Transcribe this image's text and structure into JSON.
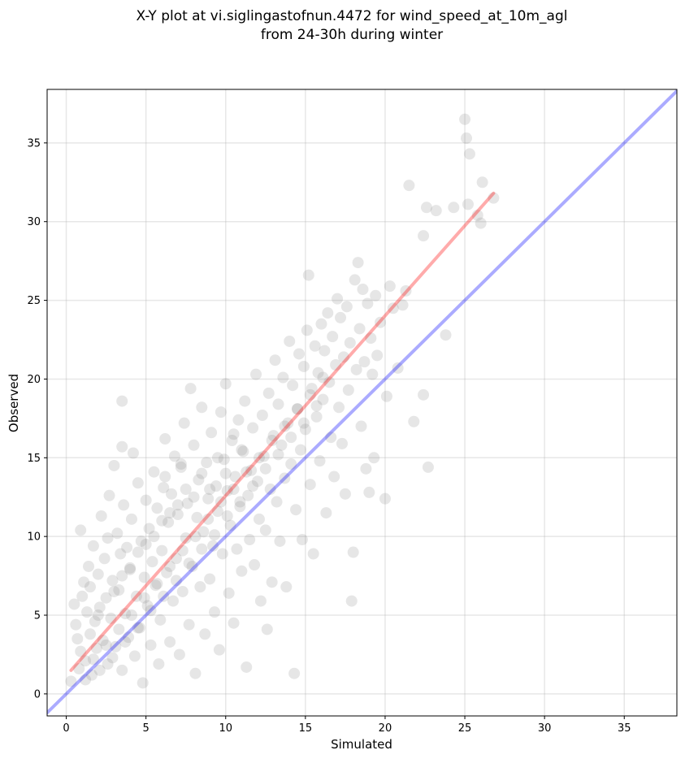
{
  "chart_data": {
    "type": "scatter",
    "title_lines": [
      "X-Y plot at vi.siglingastofnun.4472 for wind_speed_at_10m_agl",
      "from 24-30h during winter"
    ],
    "xlabel": "Simulated",
    "ylabel": "Observed",
    "xlim": [
      -1.2,
      38.3
    ],
    "ylim": [
      -1.4,
      38.4
    ],
    "xticks": [
      0,
      5,
      10,
      15,
      20,
      25,
      30,
      35
    ],
    "yticks": [
      0,
      5,
      10,
      15,
      20,
      25,
      30,
      35
    ],
    "grid": true,
    "point_color": "#808080",
    "series": [
      {
        "values": [
          [
            0.5,
            5.7
          ],
          [
            0.6,
            4.4
          ],
          [
            0.7,
            3.5
          ],
          [
            0.9,
            2.7
          ],
          [
            0.9,
            10.4
          ],
          [
            1.0,
            6.2
          ],
          [
            1.1,
            7.1
          ],
          [
            1.2,
            2.1
          ],
          [
            1.3,
            5.2
          ],
          [
            1.4,
            8.1
          ],
          [
            1.5,
            3.8
          ],
          [
            1.5,
            6.8
          ],
          [
            1.6,
            1.2
          ],
          [
            1.7,
            9.4
          ],
          [
            1.8,
            4.6
          ],
          [
            1.9,
            2.9
          ],
          [
            2.0,
            7.6
          ],
          [
            2.1,
            5.5
          ],
          [
            2.2,
            11.3
          ],
          [
            2.3,
            3.4
          ],
          [
            2.4,
            8.6
          ],
          [
            2.5,
            6.1
          ],
          [
            2.6,
            1.9
          ],
          [
            2.6,
            9.9
          ],
          [
            2.7,
            12.6
          ],
          [
            2.8,
            4.8
          ],
          [
            2.9,
            7.2
          ],
          [
            3.0,
            14.5
          ],
          [
            3.1,
            3.0
          ],
          [
            3.2,
            10.2
          ],
          [
            3.3,
            6.6
          ],
          [
            3.4,
            8.9
          ],
          [
            3.5,
            1.5
          ],
          [
            3.5,
            18.6
          ],
          [
            3.5,
            15.7
          ],
          [
            3.6,
            12.0
          ],
          [
            3.7,
            5.1
          ],
          [
            3.8,
            9.3
          ],
          [
            3.9,
            3.6
          ],
          [
            4.0,
            7.9
          ],
          [
            4.1,
            11.1
          ],
          [
            4.2,
            15.3
          ],
          [
            4.3,
            2.4
          ],
          [
            4.4,
            6.2
          ],
          [
            4.5,
            13.4
          ],
          [
            4.6,
            4.2
          ],
          [
            4.7,
            9.7
          ],
          [
            4.8,
            0.7
          ],
          [
            4.9,
            7.4
          ],
          [
            5.0,
            12.3
          ],
          [
            5.1,
            5.6
          ],
          [
            5.2,
            10.5
          ],
          [
            5.3,
            3.1
          ],
          [
            5.4,
            8.4
          ],
          [
            5.5,
            14.1
          ],
          [
            5.6,
            6.9
          ],
          [
            5.7,
            11.8
          ],
          [
            5.8,
            1.9
          ],
          [
            5.9,
            4.7
          ],
          [
            6.0,
            9.1
          ],
          [
            6.1,
            13.1
          ],
          [
            6.2,
            16.2
          ],
          [
            6.3,
            7.7
          ],
          [
            6.4,
            10.9
          ],
          [
            6.5,
            3.3
          ],
          [
            6.6,
            12.7
          ],
          [
            6.7,
            5.9
          ],
          [
            6.8,
            15.1
          ],
          [
            6.9,
            8.6
          ],
          [
            7.0,
            11.4
          ],
          [
            7.1,
            2.5
          ],
          [
            7.2,
            14.4
          ],
          [
            7.3,
            6.5
          ],
          [
            7.4,
            17.2
          ],
          [
            7.5,
            9.9
          ],
          [
            7.6,
            12.1
          ],
          [
            7.7,
            4.4
          ],
          [
            7.8,
            19.4
          ],
          [
            7.9,
            8.1
          ],
          [
            8.0,
            15.8
          ],
          [
            8.1,
            1.3
          ],
          [
            8.2,
            11.2
          ],
          [
            8.3,
            13.6
          ],
          [
            8.4,
            6.8
          ],
          [
            8.5,
            18.2
          ],
          [
            8.6,
            10.3
          ],
          [
            8.7,
            3.8
          ],
          [
            8.8,
            14.7
          ],
          [
            8.9,
            12.4
          ],
          [
            9.0,
            7.3
          ],
          [
            9.1,
            16.6
          ],
          [
            9.2,
            9.4
          ],
          [
            9.3,
            5.2
          ],
          [
            9.4,
            13.2
          ],
          [
            9.5,
            11.6
          ],
          [
            9.6,
            2.8
          ],
          [
            9.7,
            17.9
          ],
          [
            9.8,
            8.9
          ],
          [
            9.9,
            14.9
          ],
          [
            10.0,
            19.7
          ],
          [
            10.1,
            12.9
          ],
          [
            10.2,
            6.4
          ],
          [
            10.3,
            10.7
          ],
          [
            10.4,
            16.1
          ],
          [
            10.5,
            4.5
          ],
          [
            10.6,
            13.8
          ],
          [
            10.7,
            9.2
          ],
          [
            10.8,
            17.4
          ],
          [
            10.9,
            11.9
          ],
          [
            11.0,
            7.8
          ],
          [
            11.1,
            15.4
          ],
          [
            11.2,
            18.6
          ],
          [
            11.3,
            1.7
          ],
          [
            11.4,
            12.6
          ],
          [
            11.5,
            9.8
          ],
          [
            11.6,
            14.2
          ],
          [
            11.7,
            16.9
          ],
          [
            11.8,
            8.2
          ],
          [
            11.9,
            20.3
          ],
          [
            12.0,
            13.5
          ],
          [
            12.1,
            11.1
          ],
          [
            12.2,
            5.9
          ],
          [
            12.3,
            17.7
          ],
          [
            12.4,
            15.1
          ],
          [
            12.5,
            10.4
          ],
          [
            12.6,
            4.1
          ],
          [
            12.7,
            19.1
          ],
          [
            12.8,
            13.0
          ],
          [
            12.9,
            7.1
          ],
          [
            13.0,
            16.4
          ],
          [
            13.1,
            21.2
          ],
          [
            13.2,
            12.2
          ],
          [
            13.3,
            18.4
          ],
          [
            13.4,
            9.7
          ],
          [
            13.5,
            15.8
          ],
          [
            13.6,
            20.1
          ],
          [
            13.7,
            13.7
          ],
          [
            13.8,
            6.8
          ],
          [
            13.9,
            17.2
          ],
          [
            14.0,
            22.4
          ],
          [
            14.1,
            14.6
          ],
          [
            14.2,
            19.6
          ],
          [
            14.3,
            1.3
          ],
          [
            14.4,
            11.7
          ],
          [
            14.5,
            18.1
          ],
          [
            14.6,
            21.6
          ],
          [
            14.7,
            15.5
          ],
          [
            14.8,
            9.8
          ],
          [
            14.9,
            20.8
          ],
          [
            15.0,
            16.8
          ],
          [
            15.1,
            23.1
          ],
          [
            15.2,
            26.6
          ],
          [
            15.3,
            13.3
          ],
          [
            15.4,
            19.4
          ],
          [
            15.5,
            8.9
          ],
          [
            15.6,
            22.1
          ],
          [
            15.7,
            17.6
          ],
          [
            15.8,
            20.4
          ],
          [
            15.9,
            14.8
          ],
          [
            16.0,
            23.5
          ],
          [
            16.1,
            18.7
          ],
          [
            16.2,
            21.8
          ],
          [
            16.3,
            11.5
          ],
          [
            16.4,
            24.2
          ],
          [
            16.5,
            19.8
          ],
          [
            16.6,
            16.3
          ],
          [
            16.7,
            22.7
          ],
          [
            16.8,
            13.8
          ],
          [
            16.9,
            20.9
          ],
          [
            17.0,
            25.1
          ],
          [
            17.1,
            18.2
          ],
          [
            17.2,
            23.9
          ],
          [
            17.3,
            15.9
          ],
          [
            17.4,
            21.4
          ],
          [
            17.5,
            12.7
          ],
          [
            17.6,
            24.6
          ],
          [
            17.7,
            19.3
          ],
          [
            17.8,
            22.3
          ],
          [
            17.9,
            5.9
          ],
          [
            18.0,
            9.0
          ],
          [
            18.1,
            26.3
          ],
          [
            18.2,
            20.6
          ],
          [
            18.3,
            27.4
          ],
          [
            18.4,
            23.2
          ],
          [
            18.5,
            17.0
          ],
          [
            18.6,
            25.7
          ],
          [
            18.7,
            21.1
          ],
          [
            18.8,
            14.3
          ],
          [
            18.9,
            24.8
          ],
          [
            19.0,
            12.8
          ],
          [
            19.1,
            22.6
          ],
          [
            19.2,
            20.3
          ],
          [
            19.3,
            15.0
          ],
          [
            19.4,
            25.3
          ],
          [
            19.5,
            21.5
          ],
          [
            19.7,
            23.6
          ],
          [
            20.0,
            12.4
          ],
          [
            20.1,
            18.9
          ],
          [
            20.3,
            25.9
          ],
          [
            20.5,
            24.5
          ],
          [
            20.8,
            20.7
          ],
          [
            21.1,
            24.7
          ],
          [
            21.3,
            25.6
          ],
          [
            21.5,
            32.3
          ],
          [
            21.8,
            17.3
          ],
          [
            22.4,
            29.1
          ],
          [
            22.4,
            19.0
          ],
          [
            22.6,
            30.9
          ],
          [
            22.7,
            14.4
          ],
          [
            23.2,
            30.7
          ],
          [
            23.8,
            22.8
          ],
          [
            24.3,
            30.9
          ],
          [
            25.0,
            36.5
          ],
          [
            25.1,
            35.3
          ],
          [
            25.2,
            31.1
          ],
          [
            25.3,
            34.3
          ],
          [
            25.8,
            30.4
          ],
          [
            26.1,
            32.5
          ],
          [
            26.0,
            29.9
          ],
          [
            26.8,
            31.5
          ]
        ]
      },
      {
        "values": [
          [
            0.3,
            0.8
          ],
          [
            0.8,
            1.6
          ],
          [
            1.2,
            0.9
          ],
          [
            1.7,
            2.2
          ],
          [
            2.1,
            1.5
          ],
          [
            2.5,
            3.1
          ],
          [
            2.9,
            2.3
          ],
          [
            3.3,
            4.1
          ],
          [
            3.7,
            3.3
          ],
          [
            4.1,
            5.0
          ],
          [
            4.5,
            4.2
          ],
          [
            4.9,
            6.1
          ],
          [
            5.3,
            5.3
          ],
          [
            5.7,
            7.0
          ],
          [
            6.1,
            6.2
          ],
          [
            6.5,
            8.1
          ],
          [
            6.9,
            7.2
          ],
          [
            7.3,
            9.1
          ],
          [
            7.7,
            8.3
          ],
          [
            8.1,
            10.0
          ],
          [
            8.5,
            9.2
          ],
          [
            8.9,
            11.1
          ],
          [
            9.3,
            10.1
          ],
          [
            9.7,
            12.2
          ],
          [
            10.1,
            11.3
          ],
          [
            10.5,
            13.0
          ],
          [
            10.9,
            12.2
          ],
          [
            11.3,
            14.1
          ],
          [
            11.7,
            13.2
          ],
          [
            12.1,
            15.0
          ],
          [
            12.5,
            14.3
          ],
          [
            12.9,
            16.1
          ],
          [
            13.3,
            15.2
          ],
          [
            13.7,
            17.0
          ],
          [
            14.1,
            16.3
          ],
          [
            14.5,
            18.1
          ],
          [
            14.9,
            17.2
          ],
          [
            15.3,
            19.0
          ],
          [
            15.7,
            18.3
          ],
          [
            16.1,
            20.1
          ],
          [
            2.0,
            5.0
          ],
          [
            3.0,
            6.5
          ],
          [
            4.0,
            8.0
          ],
          [
            5.0,
            9.5
          ],
          [
            6.0,
            11.0
          ],
          [
            7.0,
            12.0
          ],
          [
            8.0,
            12.5
          ],
          [
            9.0,
            13.0
          ],
          [
            10.0,
            14.0
          ],
          [
            11.0,
            15.5
          ],
          [
            3.5,
            7.5
          ],
          [
            4.5,
            9.0
          ],
          [
            5.5,
            10.0
          ],
          [
            6.5,
            11.5
          ],
          [
            7.5,
            13.0
          ],
          [
            8.5,
            14.0
          ],
          [
            9.5,
            15.0
          ],
          [
            10.5,
            16.5
          ],
          [
            6.2,
            13.8
          ],
          [
            7.2,
            14.6
          ]
        ]
      }
    ],
    "lines": [
      {
        "name": "1:1",
        "color": "#0000ff",
        "alpha": 0.33,
        "points": [
          [
            -1.2,
            -1.2
          ],
          [
            38.3,
            38.3
          ]
        ]
      },
      {
        "name": "fit",
        "color": "#ff0000",
        "alpha": 0.33,
        "points": [
          [
            0.3,
            1.5
          ],
          [
            26.8,
            31.8
          ]
        ]
      }
    ]
  }
}
